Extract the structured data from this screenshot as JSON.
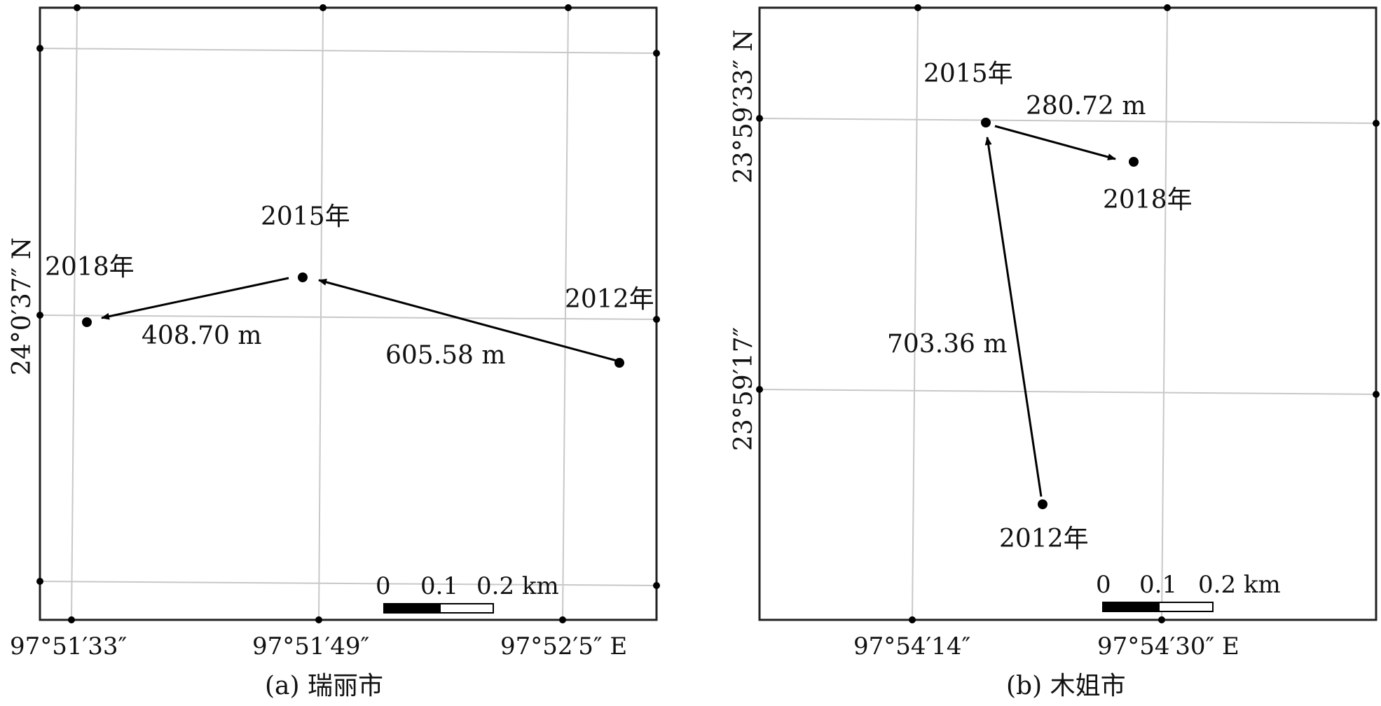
{
  "panel_a": {
    "caption": "(a) 瑞丽市",
    "lat_label": "24°0′37″ N",
    "lon_labels": [
      "97°51′33″",
      "97°51′49″",
      "97°52′5″ E"
    ],
    "points": [
      {
        "year": "2012年"
      },
      {
        "year": "2015年"
      },
      {
        "year": "2018年"
      }
    ],
    "distances": [
      "605.58 m",
      "408.70 m"
    ],
    "scale_bar": {
      "ticks": [
        "0",
        "0.1",
        "0.2 km"
      ]
    }
  },
  "panel_b": {
    "caption": "(b) 木姐市",
    "lat_labels": [
      "23°59′33″ N",
      "23°59′17″"
    ],
    "lon_labels": [
      "97°54′14″",
      "97°54′30″ E"
    ],
    "points": [
      {
        "year": "2012年"
      },
      {
        "year": "2015年"
      },
      {
        "year": "2018年"
      }
    ],
    "distances": [
      "703.36 m",
      "280.72 m"
    ],
    "scale_bar": {
      "ticks": [
        "0",
        "0.1",
        "0.2 km"
      ]
    }
  }
}
